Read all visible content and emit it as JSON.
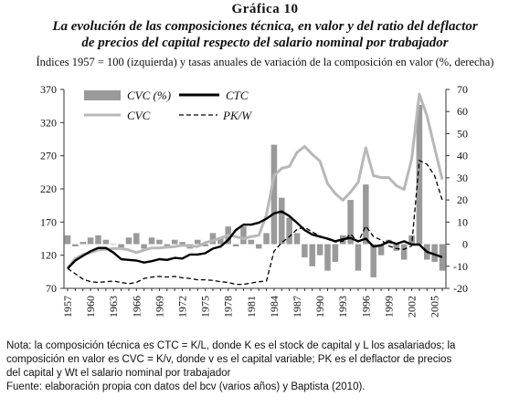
{
  "figure": {
    "label": "Gráfica 10",
    "title_line1": "La evolución de las composiciones técnica, en valor y del ratio del deflactor",
    "title_line2": "de precios del capital respecto del salario nominal por trabajador",
    "subtitle": "Índices 1957 = 100 (izquierda) y tasas anuales de variación de la composición en valor (%, derecha)"
  },
  "notes": {
    "line1": "Nota: la composición técnica es CTC = K/L, donde K es el stock de capital y L los asalariados; la",
    "line2": "composición en valor es CVC = K/v, donde v es el capital variable; PK es el deflactor de precios",
    "line3": "del capital y Wt el salario nominal por trabajador",
    "line4": "Fuente: elaboración propia con datos del bcv (varios años) y Baptista (2010)."
  },
  "chart_data": {
    "type": "line",
    "x": [
      1957,
      1958,
      1959,
      1960,
      1961,
      1962,
      1963,
      1964,
      1965,
      1966,
      1967,
      1968,
      1969,
      1970,
      1971,
      1972,
      1973,
      1974,
      1975,
      1976,
      1977,
      1978,
      1979,
      1980,
      1981,
      1982,
      1983,
      1984,
      1985,
      1986,
      1987,
      1988,
      1989,
      1990,
      1991,
      1992,
      1993,
      1994,
      1995,
      1996,
      1997,
      1998,
      1999,
      2000,
      2001,
      2002,
      2003,
      2004,
      2005,
      2006
    ],
    "x_tick_labels": [
      "1957",
      "1960",
      "1963",
      "1966",
      "1969",
      "1972",
      "1975",
      "1978",
      "1981",
      "1984",
      "1987",
      "1990",
      "1993",
      "1996",
      "1999",
      "2002",
      "2005"
    ],
    "left_axis": {
      "ticks": [
        "70",
        "120",
        "170",
        "220",
        "270",
        "320",
        "370"
      ],
      "ylim": [
        70,
        370
      ]
    },
    "right_axis": {
      "ticks": [
        "-20",
        "-10",
        "0",
        "10",
        "20",
        "30",
        "40",
        "50",
        "60",
        "70"
      ],
      "ylim": [
        -20,
        70
      ]
    },
    "legend": [
      "CVC (%)",
      "CTC",
      "CVC",
      "PK/W"
    ],
    "series": [
      {
        "name": "CVC (%)",
        "type": "bar",
        "axis": "right",
        "color": "#9a9a9a",
        "values": [
          4,
          -1,
          1,
          3,
          4,
          2,
          0,
          -2,
          3,
          5,
          -2,
          3,
          2,
          -1,
          2,
          1,
          -2,
          2,
          -1,
          5,
          3,
          8,
          -1,
          8,
          2,
          -2,
          5,
          45,
          21,
          12,
          5,
          -6,
          -10,
          -5,
          -12,
          -8,
          4,
          20,
          -12,
          27,
          -15,
          -5,
          2,
          -3,
          -7,
          4,
          63,
          -7,
          -8,
          -12
        ]
      },
      {
        "name": "CTC",
        "type": "line",
        "axis": "left",
        "color": "#000000",
        "values": [
          100,
          112,
          119,
          126,
          131,
          131,
          124,
          114,
          113,
          112,
          109,
          111,
          114,
          113,
          116,
          115,
          121,
          121,
          123,
          130,
          133,
          143,
          158,
          166,
          166,
          169,
          175,
          183,
          186,
          179,
          169,
          158,
          151,
          148,
          145,
          141,
          144,
          146,
          141,
          145,
          133,
          135,
          141,
          137,
          141,
          136,
          136,
          125,
          121,
          117
        ]
      },
      {
        "name": "CVC",
        "type": "line",
        "axis": "left",
        "color": "#b8b8b8",
        "values": [
          100,
          115,
          121,
          124,
          128,
          129,
          130,
          130,
          128,
          124,
          128,
          131,
          131,
          132,
          133,
          135,
          134,
          133,
          139,
          142,
          146,
          150,
          148,
          145,
          148,
          150,
          181,
          240,
          251,
          254,
          275,
          284,
          272,
          262,
          228,
          213,
          203,
          215,
          230,
          282,
          240,
          237,
          237,
          225,
          219,
          265,
          363,
          330,
          282,
          234
        ]
      },
      {
        "name": "PK/W",
        "type": "line",
        "axis": "left",
        "color": "#000000",
        "dash": true,
        "values": [
          100,
          92,
          84,
          80,
          79,
          80,
          81,
          79,
          77,
          79,
          85,
          87,
          88,
          87,
          88,
          86,
          85,
          83,
          83,
          82,
          80,
          79,
          76,
          76,
          78,
          80,
          81,
          126,
          139,
          148,
          159,
          162,
          155,
          149,
          144,
          140,
          141,
          152,
          140,
          164,
          148,
          143,
          134,
          130,
          129,
          134,
          263,
          257,
          240,
          203
        ]
      }
    ]
  }
}
